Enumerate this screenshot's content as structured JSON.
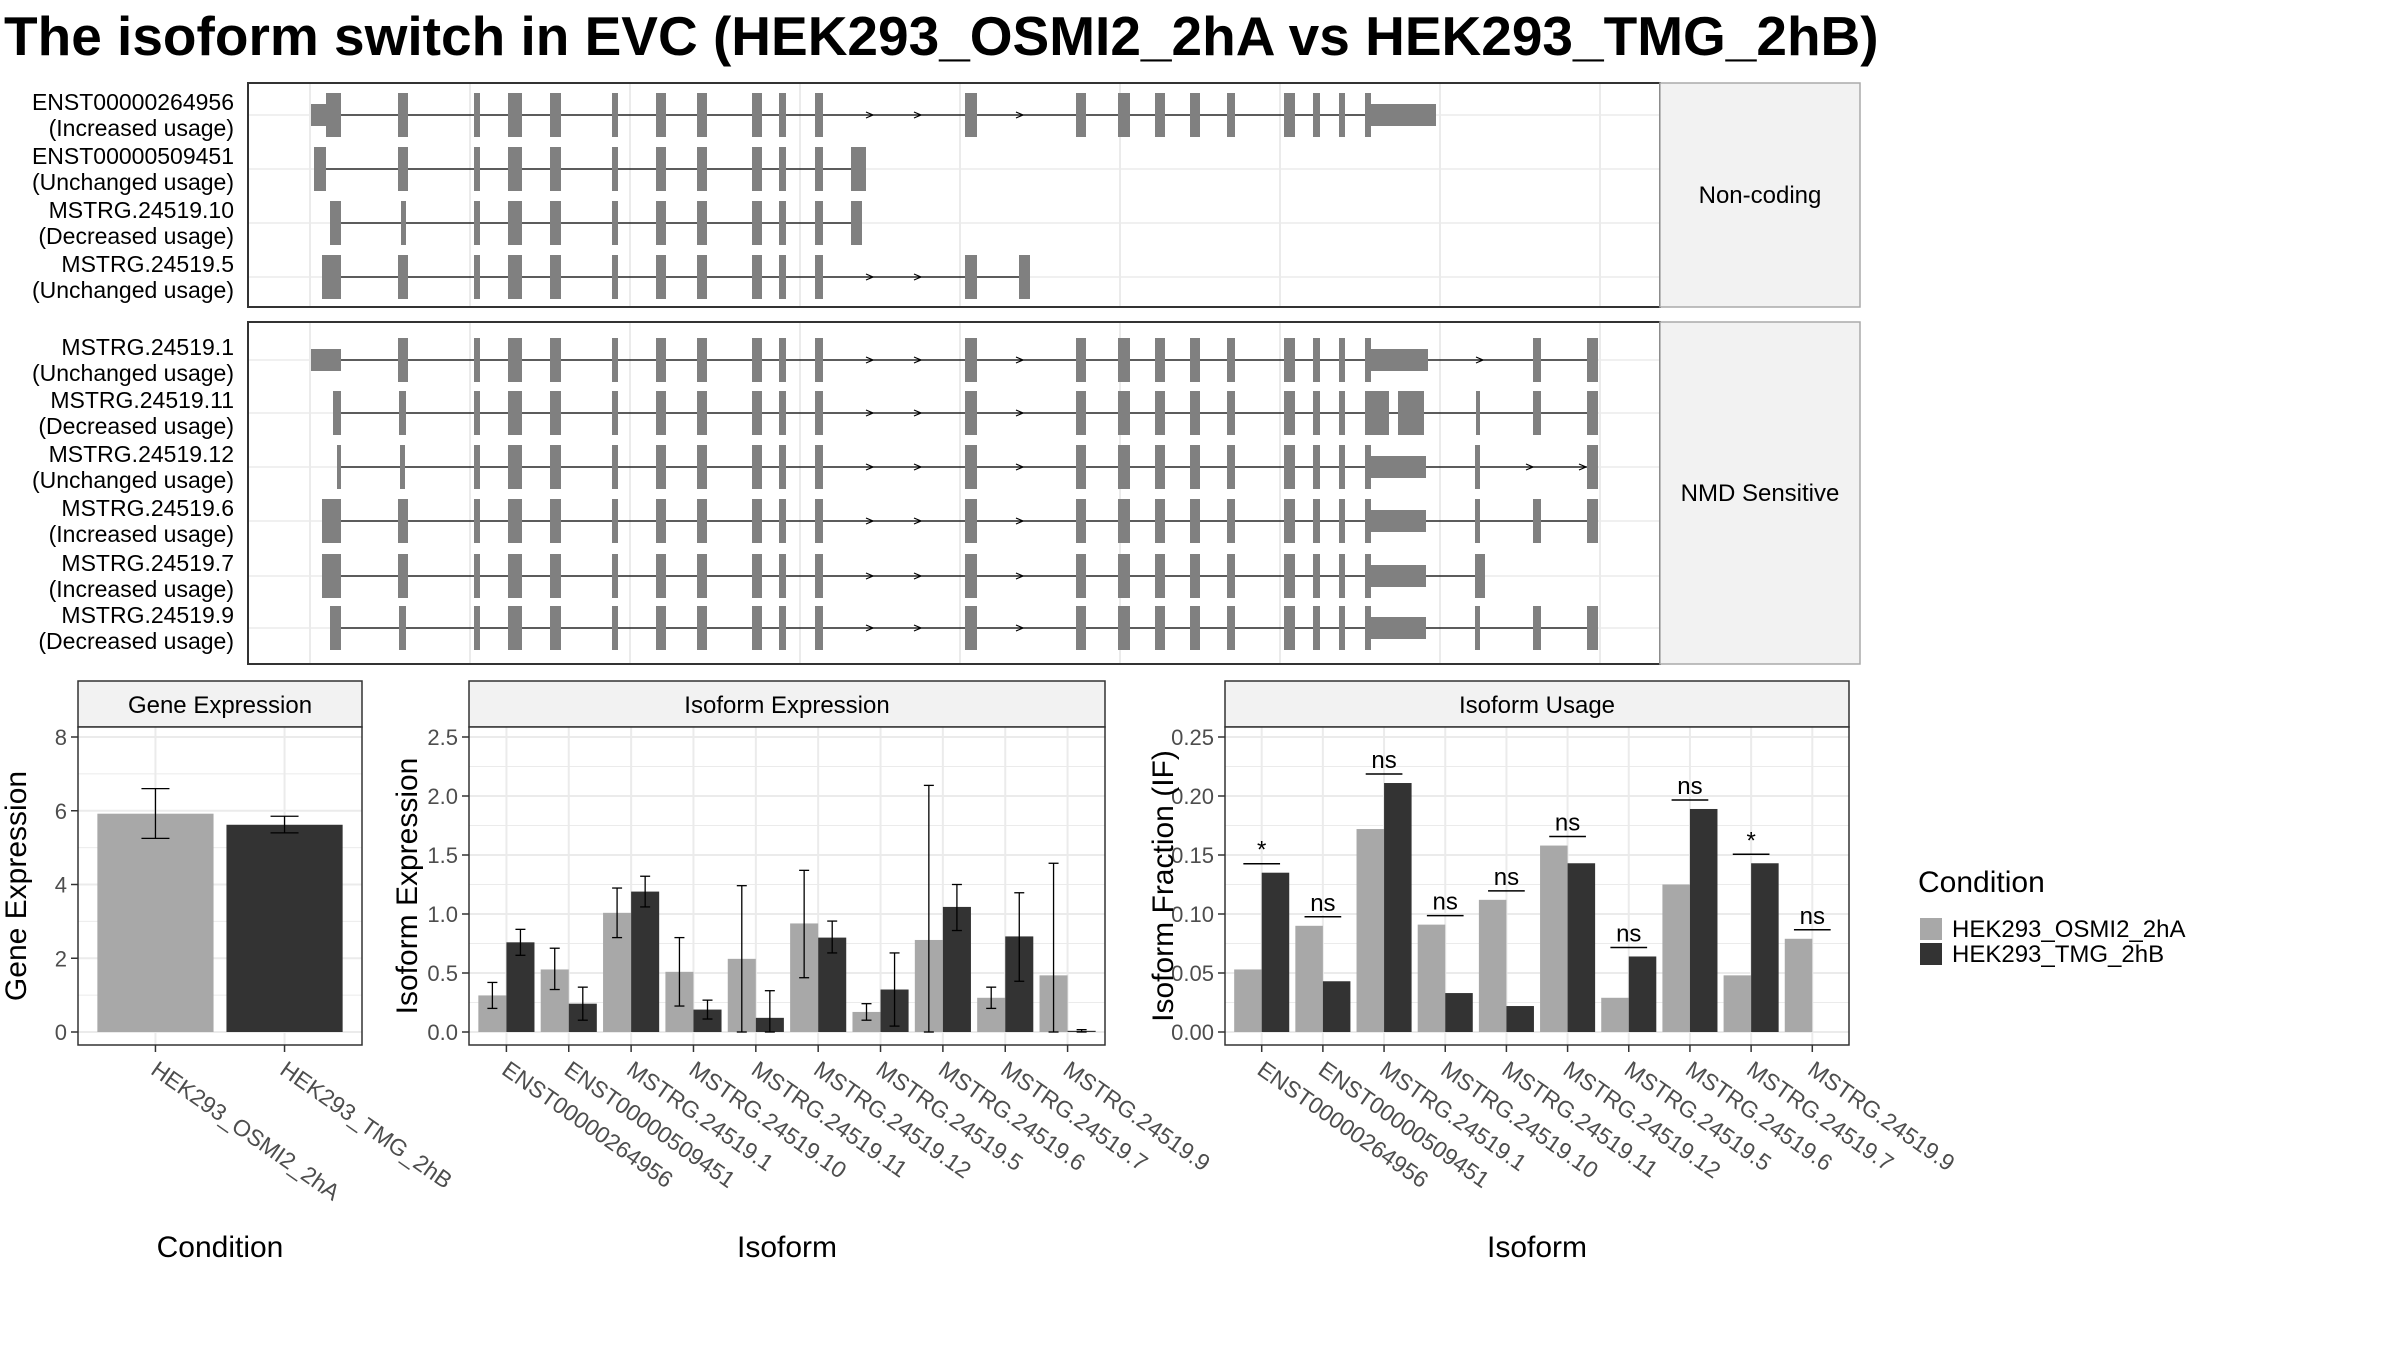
{
  "title": "The isoform switch in EVC (HEK293_OSMI2_2hA vs HEK293_TMG_2hB)",
  "colors": {
    "osmi": "#a8a8a8",
    "tmg": "#333333",
    "exon": "#808080",
    "grid": "#ebebeb",
    "strip_bg": "#f2f2f2"
  },
  "structure": {
    "panels": [
      {
        "label": "Non-coding",
        "isoforms": [
          {
            "id": "ENST00000264956",
            "usage": "(Increased usage)"
          },
          {
            "id": "ENST00000509451",
            "usage": "(Unchanged usage)"
          },
          {
            "id": "MSTRG.24519.10",
            "usage": "(Decreased usage)"
          },
          {
            "id": "MSTRG.24519.5",
            "usage": "(Unchanged usage)"
          }
        ]
      },
      {
        "label": "NMD Sensitive",
        "isoforms": [
          {
            "id": "MSTRG.24519.1",
            "usage": "(Unchanged usage)"
          },
          {
            "id": "MSTRG.24519.11",
            "usage": "(Decreased usage)"
          },
          {
            "id": "MSTRG.24519.12",
            "usage": "(Unchanged usage)"
          },
          {
            "id": "MSTRG.24519.6",
            "usage": "(Increased usage)"
          },
          {
            "id": "MSTRG.24519.7",
            "usage": "(Increased usage)"
          },
          {
            "id": "MSTRG.24519.9",
            "usage": "(Decreased usage)"
          }
        ]
      }
    ]
  },
  "legend": {
    "title": "Condition",
    "items": [
      "HEK293_OSMI2_2hA",
      "HEK293_TMG_2hB"
    ]
  },
  "chart_data": [
    {
      "type": "bar",
      "title": "Gene Expression",
      "xlabel": "Condition",
      "ylabel": "Gene Expression",
      "ylim": [
        0,
        8
      ],
      "yticks": [
        0,
        2,
        4,
        6,
        8
      ],
      "categories": [
        "HEK293_OSMI2_2hA",
        "HEK293_TMG_2hB"
      ],
      "values": [
        5.92,
        5.62
      ],
      "error_low": [
        5.25,
        5.4
      ],
      "error_high": [
        6.6,
        5.85
      ]
    },
    {
      "type": "bar",
      "title": "Isoform Expression",
      "xlabel": "Isoform",
      "ylabel": "Isoform Expression",
      "ylim": [
        0,
        2.5
      ],
      "yticks": [
        0.0,
        0.5,
        1.0,
        1.5,
        2.0,
        2.5
      ],
      "tick_labels": [
        "0.0",
        "0.5",
        "1.0",
        "1.5",
        "2.0",
        "2.5"
      ],
      "categories": [
        "ENST00000264956",
        "ENST00000509451",
        "MSTRG.24519.1",
        "MSTRG.24519.10",
        "MSTRG.24519.11",
        "MSTRG.24519.12",
        "MSTRG.24519.5",
        "MSTRG.24519.6",
        "MSTRG.24519.7",
        "MSTRG.24519.9"
      ],
      "series": [
        {
          "name": "HEK293_OSMI2_2hA",
          "values": [
            0.31,
            0.53,
            1.01,
            0.51,
            0.62,
            0.92,
            0.17,
            0.78,
            0.29,
            0.48
          ],
          "error_low": [
            0.2,
            0.36,
            0.8,
            0.22,
            0.0,
            0.46,
            0.1,
            0.0,
            0.2,
            0.0
          ],
          "error_high": [
            0.42,
            0.71,
            1.22,
            0.8,
            1.24,
            1.37,
            0.24,
            2.09,
            0.38,
            1.43
          ]
        },
        {
          "name": "HEK293_TMG_2hB",
          "values": [
            0.76,
            0.24,
            1.19,
            0.19,
            0.12,
            0.8,
            0.36,
            1.06,
            0.81,
            0.01
          ],
          "error_low": [
            0.65,
            0.1,
            1.06,
            0.11,
            0.0,
            0.67,
            0.05,
            0.86,
            0.43,
            0.0
          ],
          "error_high": [
            0.87,
            0.38,
            1.32,
            0.27,
            0.35,
            0.94,
            0.67,
            1.25,
            1.18,
            0.02
          ]
        }
      ]
    },
    {
      "type": "bar",
      "title": "Isoform Usage",
      "xlabel": "Isoform",
      "ylabel": "Isoform Fraction (IF)",
      "ylim": [
        0,
        0.25
      ],
      "yticks": [
        0.0,
        0.05,
        0.1,
        0.15,
        0.2,
        0.25
      ],
      "tick_labels": [
        "0.00",
        "0.05",
        "0.10",
        "0.15",
        "0.20",
        "0.25"
      ],
      "categories": [
        "ENST00000264956",
        "ENST00000509451",
        "MSTRG.24519.1",
        "MSTRG.24519.10",
        "MSTRG.24519.11",
        "MSTRG.24519.12",
        "MSTRG.24519.5",
        "MSTRG.24519.6",
        "MSTRG.24519.7",
        "MSTRG.24519.9"
      ],
      "series": [
        {
          "name": "HEK293_OSMI2_2hA",
          "values": [
            0.053,
            0.09,
            0.172,
            0.091,
            0.112,
            0.158,
            0.029,
            0.125,
            0.048,
            0.079
          ]
        },
        {
          "name": "HEK293_TMG_2hB",
          "values": [
            0.135,
            0.043,
            0.211,
            0.033,
            0.022,
            0.143,
            0.064,
            0.189,
            0.143,
            0.0
          ]
        }
      ],
      "significance": [
        "*",
        "ns",
        "ns",
        "ns",
        "ns",
        "ns",
        "ns",
        "ns",
        "*",
        "ns"
      ]
    }
  ]
}
